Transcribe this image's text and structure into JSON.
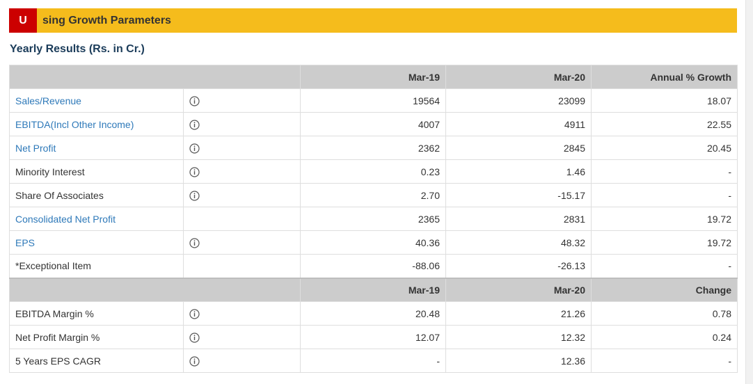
{
  "banner": {
    "letter": "U",
    "title": "sing Growth Parameters",
    "accent_color": "#f5bc1c",
    "letter_color": "#cc0000"
  },
  "section": {
    "title": "Yearly Results (Rs. in Cr.)"
  },
  "table1": {
    "headers": [
      "Mar-19",
      "Mar-20",
      "Annual % Growth"
    ],
    "rows": [
      {
        "name": "Sales/Revenue",
        "v1": "19564",
        "v2": "23099",
        "v3": "18.07"
      },
      {
        "name": "EBITDA(Incl Other Income)",
        "v1": "4007",
        "v2": "4911",
        "v3": "22.55"
      },
      {
        "name": "Net Profit",
        "v1": "2362",
        "v2": "2845",
        "v3": "20.45"
      },
      {
        "name": "Minority Interest",
        "v1": "0.23",
        "v2": "1.46",
        "v3": "-"
      },
      {
        "name": "Share Of Associates",
        "v1": "2.70",
        "v2": "-15.17",
        "v3": "-"
      },
      {
        "name": "Consolidated Net Profit",
        "v1": "2365",
        "v2": "2831",
        "v3": "19.72"
      },
      {
        "name": "EPS",
        "v1": "40.36",
        "v2": "48.32",
        "v3": "19.72"
      },
      {
        "name": "*Exceptional Item",
        "v1": "-88.06",
        "v2": "-26.13",
        "v3": "-"
      }
    ]
  },
  "table2": {
    "headers": [
      "Mar-19",
      "Mar-20",
      "Change"
    ],
    "rows": [
      {
        "name": "EBITDA Margin %",
        "v1": "20.48",
        "v2": "21.26",
        "v3": "0.78"
      },
      {
        "name": "Net Profit Margin %",
        "v1": "12.07",
        "v2": "12.32",
        "v3": "0.24"
      },
      {
        "name": "5 Years EPS CAGR",
        "v1": "-",
        "v2": "12.36",
        "v3": "-"
      }
    ]
  },
  "icons": {
    "info": "info-circle-icon"
  }
}
